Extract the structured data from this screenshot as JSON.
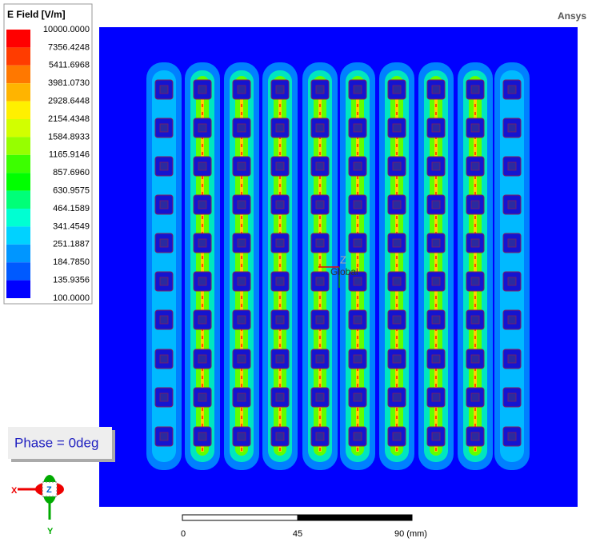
{
  "legend": {
    "title": "E Field [V/m]",
    "labels": [
      "10000.0000",
      "7356.4248",
      "5411.6968",
      "3981.0730",
      "2928.6448",
      "2154.4348",
      "1584.8933",
      "1165.9146",
      "857.6960",
      "630.9575",
      "464.1589",
      "341.4549",
      "251.1887",
      "184.7850",
      "135.9356",
      "100.0000"
    ],
    "colors": [
      "#ff0000",
      "#ff3c00",
      "#ff7800",
      "#ffb400",
      "#fff000",
      "#d2ff00",
      "#96ff00",
      "#3cff00",
      "#00ff00",
      "#00ff78",
      "#00ffd2",
      "#00d2ff",
      "#0096ff",
      "#005aff",
      "#0000ff"
    ]
  },
  "brand": "Ansys",
  "phase": "Phase = 0deg",
  "scale": {
    "labels": [
      "0",
      "45",
      "90 (mm)"
    ]
  },
  "triad": {
    "x": "X",
    "y": "Y",
    "z": "Z",
    "global": "Global"
  }
}
